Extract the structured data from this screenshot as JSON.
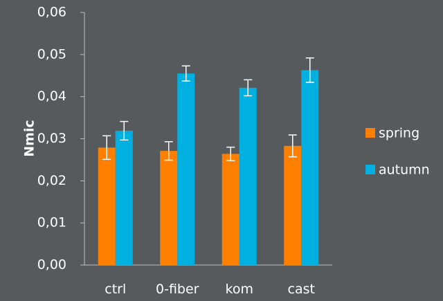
{
  "chart_data": {
    "type": "bar",
    "categories": [
      "ctrl",
      "0-fiber",
      "kom",
      "cast"
    ],
    "ylabel": "Nmic",
    "xlabel": "",
    "ylim": [
      0,
      0.06
    ],
    "yticks": [
      "0,00",
      "0,01",
      "0,02",
      "0,03",
      "0,04",
      "0,05",
      "0,06"
    ],
    "grid": false,
    "legend_position": "right",
    "series": [
      {
        "name": "spring",
        "color": "#ff8000",
        "values": [
          0.0279,
          0.0271,
          0.0264,
          0.0283
        ],
        "errors": [
          0.0028,
          0.0022,
          0.0016,
          0.0026
        ]
      },
      {
        "name": "autumn",
        "color": "#00b0e0",
        "values": [
          0.0319,
          0.0455,
          0.0421,
          0.0463
        ],
        "errors": [
          0.0022,
          0.0018,
          0.0019,
          0.0029
        ]
      }
    ]
  }
}
